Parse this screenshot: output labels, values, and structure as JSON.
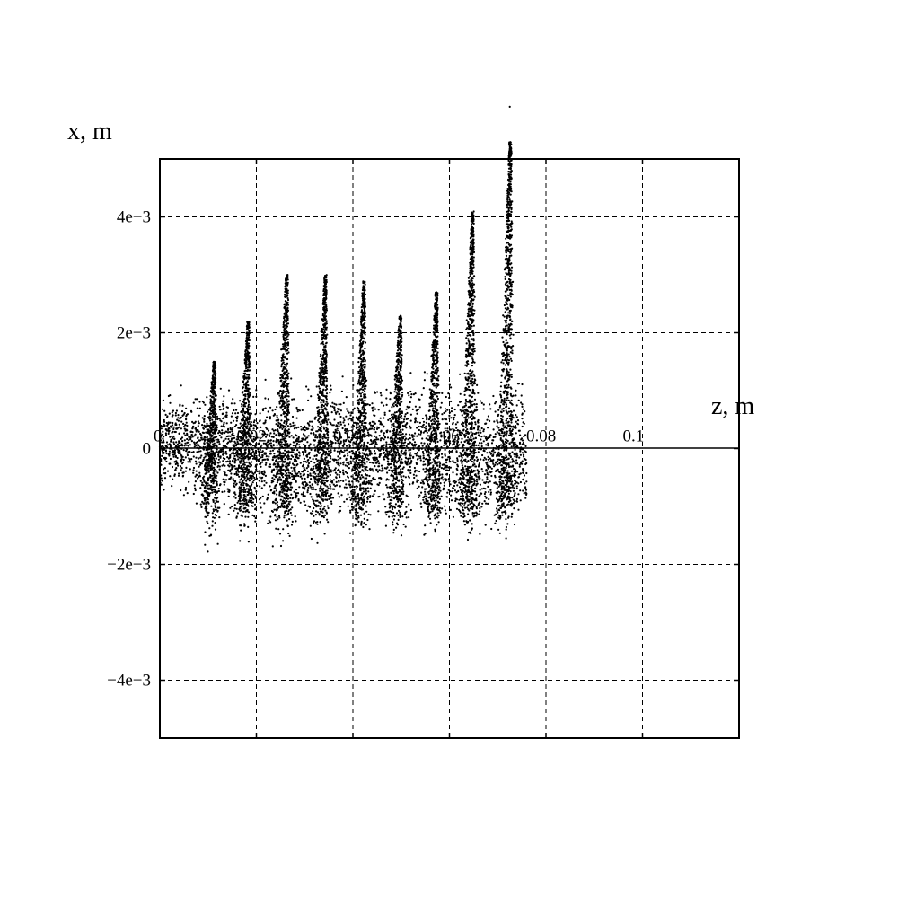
{
  "chart_data": {
    "type": "scatter",
    "title": "",
    "xlabel": "z, m",
    "ylabel": "x, m",
    "xlim": [
      0,
      0.12
    ],
    "ylim": [
      -0.005,
      0.005
    ],
    "grid": true,
    "grid_style": "dashed",
    "legend": "none",
    "marker_color": "#000000",
    "x_ticks": [
      {
        "value": 0,
        "label": "0"
      },
      {
        "value": 0.02,
        "label": "0.02"
      },
      {
        "value": 0.04,
        "label": "0.04"
      },
      {
        "value": 0.06,
        "label": "0.06"
      },
      {
        "value": 0.08,
        "label": "0.08"
      },
      {
        "value": 0.1,
        "label": "0.1"
      }
    ],
    "y_ticks": [
      {
        "value": 0.004,
        "label": "4e−3"
      },
      {
        "value": 0.002,
        "label": "2e−3"
      },
      {
        "value": 0,
        "label": "0"
      },
      {
        "value": -0.002,
        "label": "−2e−3"
      },
      {
        "value": -0.004,
        "label": "−4e−3"
      }
    ],
    "series": [
      {
        "marker": "dot",
        "bunch_envelope": {
          "z": [
            0.0,
            0.005,
            0.012,
            0.018,
            0.026,
            0.034,
            0.042,
            0.05,
            0.057,
            0.065,
            0.073,
            0.076
          ],
          "x_max": [
            0.001,
            0.0011,
            0.0015,
            0.0022,
            0.003,
            0.003,
            0.0029,
            0.0023,
            0.0027,
            0.0041,
            0.0053,
            0.0005
          ],
          "x_min": [
            -0.001,
            -0.0011,
            -0.0013,
            -0.0017,
            -0.0017,
            -0.0016,
            -0.0014,
            -0.0013,
            -0.0016,
            -0.0019,
            -0.0018,
            -0.0017
          ]
        },
        "peaks": [
          {
            "z": 0.0115,
            "x": 0.0015
          },
          {
            "z": 0.0185,
            "x": 0.0022
          },
          {
            "z": 0.0265,
            "x": 0.003
          },
          {
            "z": 0.0345,
            "x": 0.003
          },
          {
            "z": 0.0425,
            "x": 0.0029
          },
          {
            "z": 0.05,
            "x": 0.0023
          },
          {
            "z": 0.0575,
            "x": 0.0027
          },
          {
            "z": 0.065,
            "x": 0.0041
          },
          {
            "z": 0.0728,
            "x": 0.0053
          }
        ],
        "outliers": [
          {
            "z": 0.0725,
            "x": 0.0059
          }
        ]
      }
    ]
  }
}
